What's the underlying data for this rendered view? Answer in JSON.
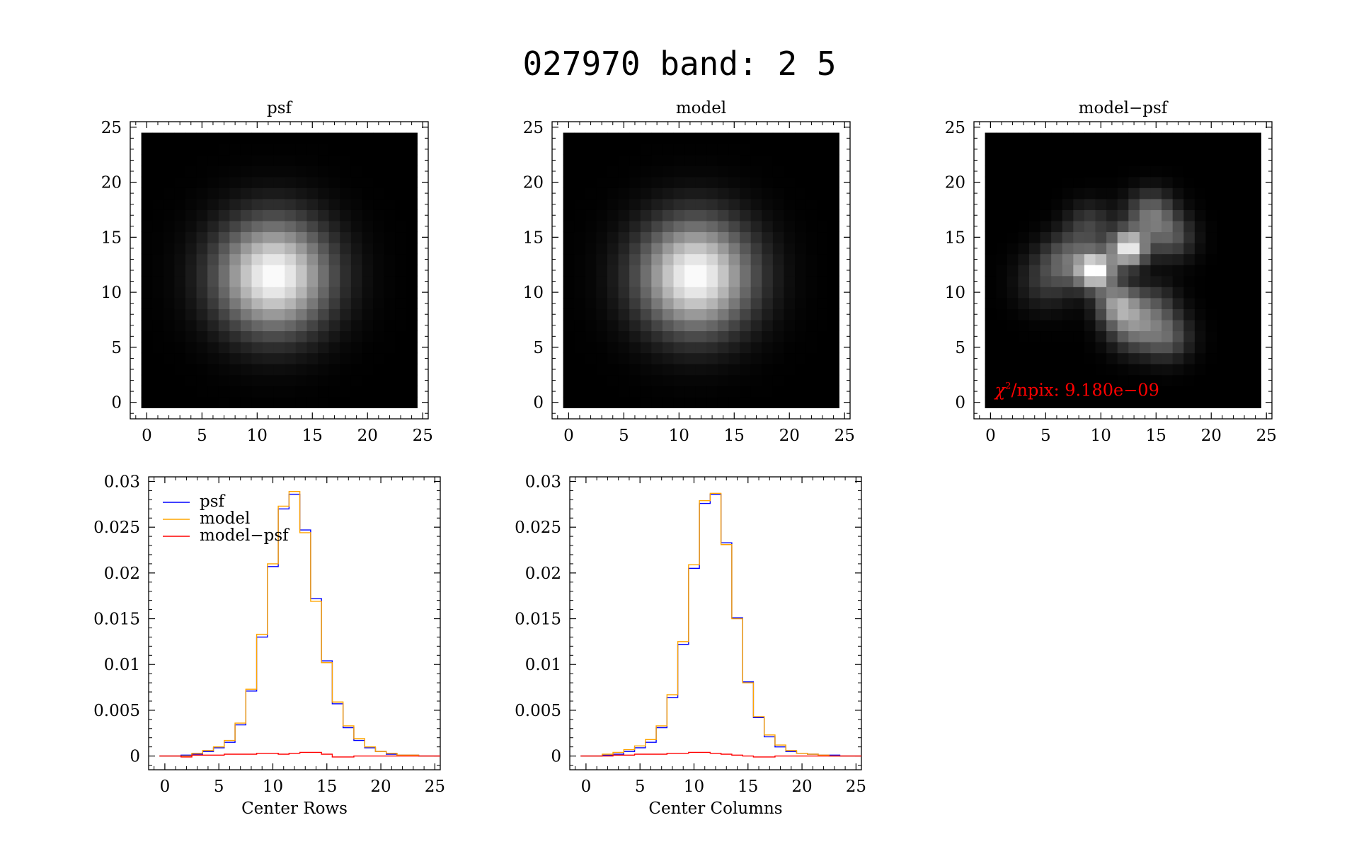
{
  "figure": {
    "title": "027970 band: 2 5"
  },
  "chart_data": [
    {
      "type": "heatmap",
      "title": "psf",
      "xlim": [
        -1.5,
        25.5
      ],
      "ylim": [
        -1.5,
        25.5
      ],
      "xticks": [
        0,
        5,
        10,
        15,
        20,
        25
      ],
      "yticks": [
        0,
        5,
        10,
        15,
        20,
        25
      ],
      "grid_size": 25,
      "blob": {
        "kind": "gaussian",
        "cx": 11.5,
        "cy": 11.5,
        "sigma": 2.6,
        "peak": 1.0
      }
    },
    {
      "type": "heatmap",
      "title": "model",
      "xlim": [
        -1.5,
        25.5
      ],
      "ylim": [
        -1.5,
        25.5
      ],
      "xticks": [
        0,
        5,
        10,
        15,
        20,
        25
      ],
      "yticks": [
        0,
        5,
        10,
        15,
        20,
        25
      ],
      "grid_size": 25,
      "blob": {
        "kind": "gaussian",
        "cx": 11.5,
        "cy": 11.5,
        "sigma": 2.6,
        "peak": 1.0
      }
    },
    {
      "type": "heatmap",
      "title": "model−psf",
      "xlim": [
        -1.5,
        25.5
      ],
      "ylim": [
        -1.5,
        25.5
      ],
      "xticks": [
        0,
        5,
        10,
        15,
        20,
        25
      ],
      "yticks": [
        0,
        5,
        10,
        15,
        20,
        25
      ],
      "grid_size": 25,
      "annotation": {
        "chi": "χ",
        "sup": "2",
        "rest": "/npix: 9.180e−09",
        "color": "#ff0000"
      },
      "residual_peaks": [
        {
          "cx": 9.5,
          "cy": 12,
          "amp": 1.0,
          "sigma": 1.1
        },
        {
          "cx": 12.5,
          "cy": 14,
          "amp": 0.95,
          "sigma": 1.1
        },
        {
          "cx": 11.5,
          "cy": 9,
          "amp": 0.55,
          "sigma": 1.3
        },
        {
          "cx": 13.0,
          "cy": 7,
          "amp": 0.45,
          "sigma": 1.6
        },
        {
          "cx": 14.5,
          "cy": 17,
          "amp": 0.45,
          "sigma": 1.5
        },
        {
          "cx": 7.0,
          "cy": 13,
          "amp": 0.35,
          "sigma": 1.6
        },
        {
          "cx": 16.0,
          "cy": 6,
          "amp": 0.35,
          "sigma": 1.5
        },
        {
          "cx": 5.0,
          "cy": 11,
          "amp": 0.2,
          "sigma": 1.8
        },
        {
          "cx": 16.5,
          "cy": 15,
          "amp": 0.3,
          "sigma": 1.4
        },
        {
          "cx": 9.0,
          "cy": 16,
          "amp": 0.25,
          "sigma": 1.5
        },
        {
          "cx": 15.0,
          "cy": 9,
          "amp": 0.2,
          "sigma": 1.4
        }
      ]
    },
    {
      "type": "line",
      "xlabel": "Center Rows",
      "xlim": [
        -1.5,
        25.5
      ],
      "ylim": [
        -0.0015,
        0.0305
      ],
      "xticks": [
        0,
        5,
        10,
        15,
        20,
        25
      ],
      "yticks": [
        0,
        0.005,
        0.01,
        0.015,
        0.02,
        0.025,
        0.03
      ],
      "ytick_labels": [
        "0",
        "0.005",
        "0.01",
        "0.015",
        "0.02",
        "0.025",
        "0.03"
      ],
      "legend": {
        "position": "top-left"
      },
      "x": [
        0,
        1,
        2,
        3,
        4,
        5,
        6,
        7,
        8,
        9,
        10,
        11,
        12,
        13,
        14,
        15,
        16,
        17,
        18,
        19,
        20,
        21,
        22,
        23,
        24,
        25
      ],
      "series": [
        {
          "name": "psf",
          "color": "#0000ff",
          "values": [
            0,
            0,
            0.0001,
            0.0002,
            0.0005,
            0.0009,
            0.0015,
            0.0034,
            0.0071,
            0.013,
            0.0207,
            0.027,
            0.0286,
            0.0247,
            0.0172,
            0.0104,
            0.0057,
            0.0031,
            0.0017,
            0.0009,
            0.0005,
            0.0002,
            0.0001,
            0.0001,
            0,
            0
          ]
        },
        {
          "name": "model",
          "color": "#ffa500",
          "values": [
            0,
            0,
            0,
            0.0003,
            0.0006,
            0.001,
            0.0017,
            0.0036,
            0.0073,
            0.0133,
            0.021,
            0.0273,
            0.0289,
            0.0244,
            0.0169,
            0.0102,
            0.0059,
            0.0033,
            0.0019,
            0.001,
            0.0005,
            0.0003,
            0.0001,
            0.0001,
            0,
            0
          ]
        },
        {
          "name": "model−psf",
          "color": "#ff0000",
          "values": [
            0,
            0,
            -0.0001,
            0.0001,
            0.0001,
            0.0001,
            0.0002,
            0.0002,
            0.0002,
            0.0003,
            0.0003,
            0.0002,
            0.0003,
            0.0004,
            0.0004,
            0.0002,
            -0.0001,
            -0.0001,
            0,
            0,
            0,
            0,
            0,
            0,
            0,
            0
          ]
        }
      ]
    },
    {
      "type": "line",
      "xlabel": "Center Columns",
      "xlim": [
        -1.5,
        25.5
      ],
      "ylim": [
        -0.0015,
        0.0305
      ],
      "xticks": [
        0,
        5,
        10,
        15,
        20,
        25
      ],
      "yticks": [
        0,
        0.005,
        0.01,
        0.015,
        0.02,
        0.025,
        0.03
      ],
      "ytick_labels": [
        "0",
        "0.005",
        "0.01",
        "0.015",
        "0.02",
        "0.025",
        "0.03"
      ],
      "x": [
        0,
        1,
        2,
        3,
        4,
        5,
        6,
        7,
        8,
        9,
        10,
        11,
        12,
        13,
        14,
        15,
        16,
        17,
        18,
        19,
        20,
        21,
        22,
        23,
        24,
        25
      ],
      "series": [
        {
          "name": "psf",
          "color": "#0000ff",
          "values": [
            0,
            0,
            0.0001,
            0.0002,
            0.0005,
            0.0009,
            0.0015,
            0.0031,
            0.0064,
            0.0122,
            0.0205,
            0.0276,
            0.0286,
            0.0233,
            0.0151,
            0.0081,
            0.0042,
            0.0021,
            0.001,
            0.0005,
            0.0003,
            0.0002,
            0.0001,
            0.0001,
            0,
            0
          ]
        },
        {
          "name": "model",
          "color": "#ffa500",
          "values": [
            0,
            0,
            0.0002,
            0.0004,
            0.0007,
            0.0011,
            0.0018,
            0.0033,
            0.0067,
            0.0125,
            0.0209,
            0.0279,
            0.0287,
            0.0231,
            0.015,
            0.008,
            0.0043,
            0.0023,
            0.0012,
            0.0006,
            0.0003,
            0.0002,
            0.0001,
            0,
            0,
            0
          ]
        },
        {
          "name": "model−psf",
          "color": "#ff0000",
          "values": [
            0,
            0,
            0,
            0.0001,
            0.0001,
            0.0002,
            0.0002,
            0.0002,
            0.0003,
            0.0003,
            0.0004,
            0.0004,
            0.0003,
            0.0002,
            0.0001,
            0,
            -0.0001,
            -0.0001,
            0,
            0,
            0,
            0,
            0,
            0,
            0,
            0
          ]
        }
      ]
    }
  ]
}
